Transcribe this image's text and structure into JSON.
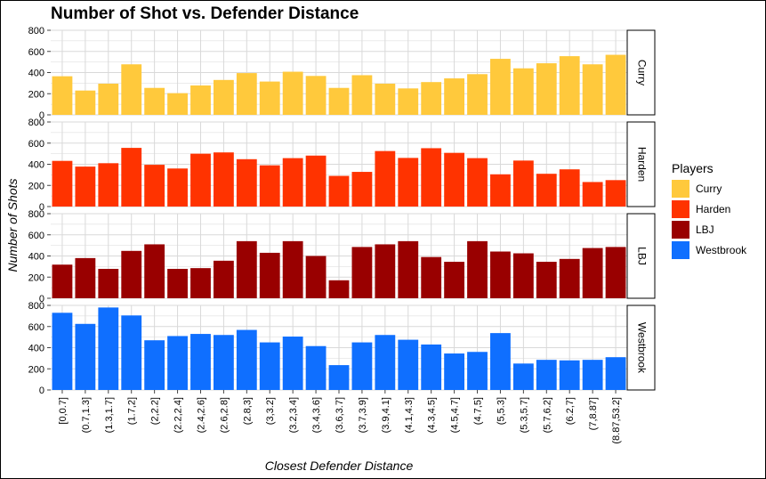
{
  "chart_data": {
    "type": "bar",
    "title": "Number of Shot vs. Defender Distance",
    "xlabel": "Closest Defender Distance",
    "ylabel": "Number of Shots",
    "ylim": [
      0,
      800
    ],
    "yticks": [
      0,
      200,
      400,
      600,
      800
    ],
    "grid": true,
    "legend": {
      "title": "Players",
      "position": "right"
    },
    "categories": [
      "[0,0.7]",
      "(0.7,1.3]",
      "(1.3,1.7]",
      "(1.7,2]",
      "(2,2.2]",
      "(2.2,2.4]",
      "(2.4,2.6]",
      "(2.6,2.8]",
      "(2.8,3]",
      "(3,3.2]",
      "(3.2,3.4]",
      "(3.4,3.6]",
      "(3.6,3.7]",
      "(3.7,3.9]",
      "(3.9,4.1]",
      "(4.1,4.3]",
      "(4.3,4.5]",
      "(4.5,4.7]",
      "(4.7,5]",
      "(5,5.3]",
      "(5.3,5.7]",
      "(5.7,6.2]",
      "(6.2,7]",
      "(7,8.87]",
      "(8.87,53.2]"
    ],
    "series": [
      {
        "name": "Curry",
        "color": "#FFC93C",
        "values": [
          365,
          230,
          295,
          478,
          255,
          205,
          278,
          330,
          395,
          315,
          408,
          368,
          255,
          375,
          295,
          250,
          310,
          345,
          385,
          530,
          440,
          488,
          555,
          478,
          568
        ]
      },
      {
        "name": "Harden",
        "color": "#FF3300",
        "values": [
          432,
          378,
          410,
          555,
          395,
          360,
          500,
          512,
          448,
          390,
          458,
          482,
          290,
          328,
          525,
          460,
          552,
          508,
          458,
          305,
          435,
          310,
          352,
          232,
          250
        ]
      },
      {
        "name": "LBJ",
        "color": "#990000",
        "values": [
          318,
          380,
          278,
          448,
          510,
          278,
          285,
          355,
          540,
          430,
          540,
          400,
          170,
          485,
          510,
          540,
          390,
          345,
          540,
          442,
          425,
          345,
          372,
          475,
          485
        ]
      },
      {
        "name": "Westbrook",
        "color": "#0F6FFF",
        "values": [
          730,
          625,
          780,
          705,
          470,
          510,
          530,
          520,
          568,
          450,
          505,
          415,
          235,
          450,
          520,
          475,
          430,
          345,
          360,
          538,
          250,
          285,
          280,
          285,
          310
        ]
      }
    ]
  }
}
